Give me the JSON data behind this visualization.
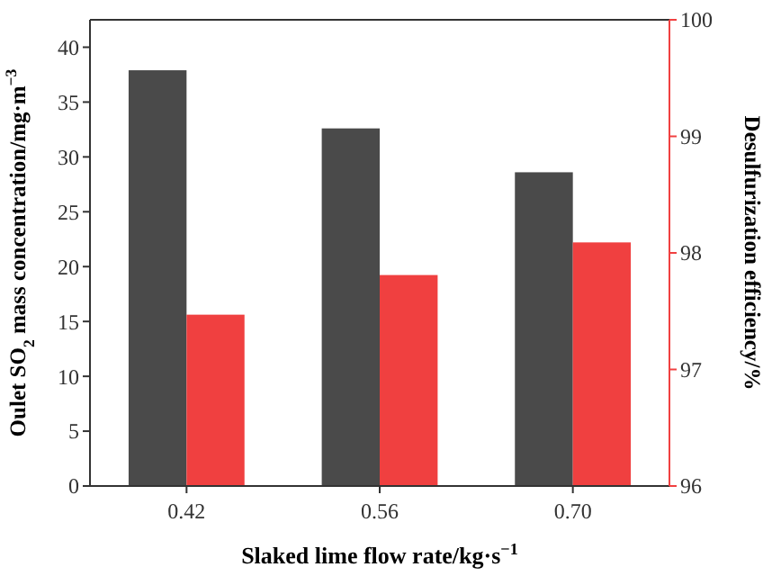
{
  "chart_data": {
    "type": "bar",
    "categories": [
      "0.42",
      "0.56",
      "0.70"
    ],
    "xlabel": "Slaked lime flow rate/kg·s$^{−1}$",
    "ylabel": "Oulet SO$_{2}$ mass concentration/mg·m$^{−3}$",
    "y2label": "Desulfurization efficiency/%",
    "series": [
      {
        "color": "#4a4a4a",
        "values": [
          37.9,
          32.6,
          28.6
        ]
      },
      {
        "color": "#f04040",
        "values": [
          97.47,
          97.81,
          98.09
        ],
        "axis": "y2"
      }
    ],
    "ylim": [
      0,
      42.5
    ],
    "yticks": [
      0,
      5,
      10,
      15,
      20,
      25,
      30,
      35,
      40
    ],
    "y2lim": [
      96,
      100
    ],
    "y2ticks": [
      96,
      97,
      98,
      99,
      100
    ]
  }
}
